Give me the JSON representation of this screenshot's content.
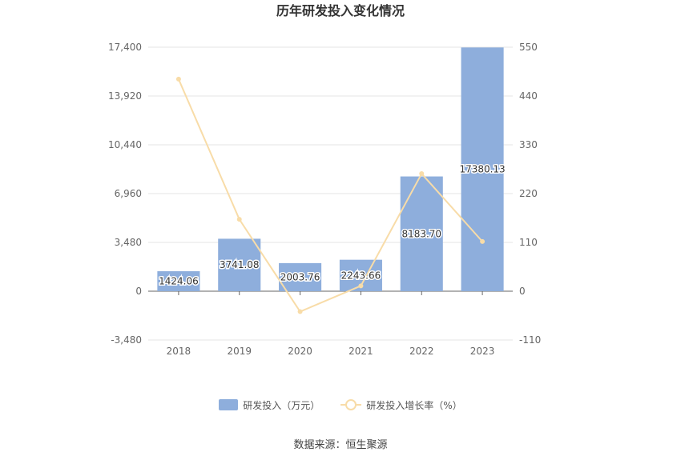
{
  "chart_data": {
    "type": "bar",
    "title": "历年研发投入变化情况",
    "categories": [
      "2018",
      "2019",
      "2020",
      "2021",
      "2022",
      "2023"
    ],
    "series": [
      {
        "name": "研发投入（万元）",
        "type": "bar",
        "axis": "left",
        "values": [
          1424.06,
          3741.08,
          2003.76,
          2243.66,
          8183.7,
          17380.13
        ],
        "labels": [
          "1424.06",
          "3741.08",
          "2003.76",
          "2243.66",
          "8183.70",
          "17380.13"
        ],
        "color": "#8eaedc"
      },
      {
        "name": "研发投入增长率（%）",
        "type": "line",
        "axis": "right",
        "values": [
          478,
          162,
          -46,
          12,
          265,
          112
        ],
        "color": "#f8dca8"
      }
    ],
    "y_left": {
      "min": -3480,
      "max": 17400,
      "ticks": [
        -3480,
        0,
        3480,
        6960,
        10440,
        13920,
        17400
      ],
      "tick_labels": [
        "-3,480",
        "0",
        "3,480",
        "6,960",
        "10,440",
        "13,920",
        "17,400"
      ]
    },
    "y_right": {
      "min": -110,
      "max": 550,
      "ticks": [
        -110,
        0,
        110,
        220,
        330,
        440,
        550
      ],
      "tick_labels": [
        "-110",
        "0",
        "110",
        "220",
        "330",
        "440",
        "550"
      ]
    },
    "grid": true,
    "legend_position": "bottom"
  },
  "source": "数据来源：恒生聚源"
}
